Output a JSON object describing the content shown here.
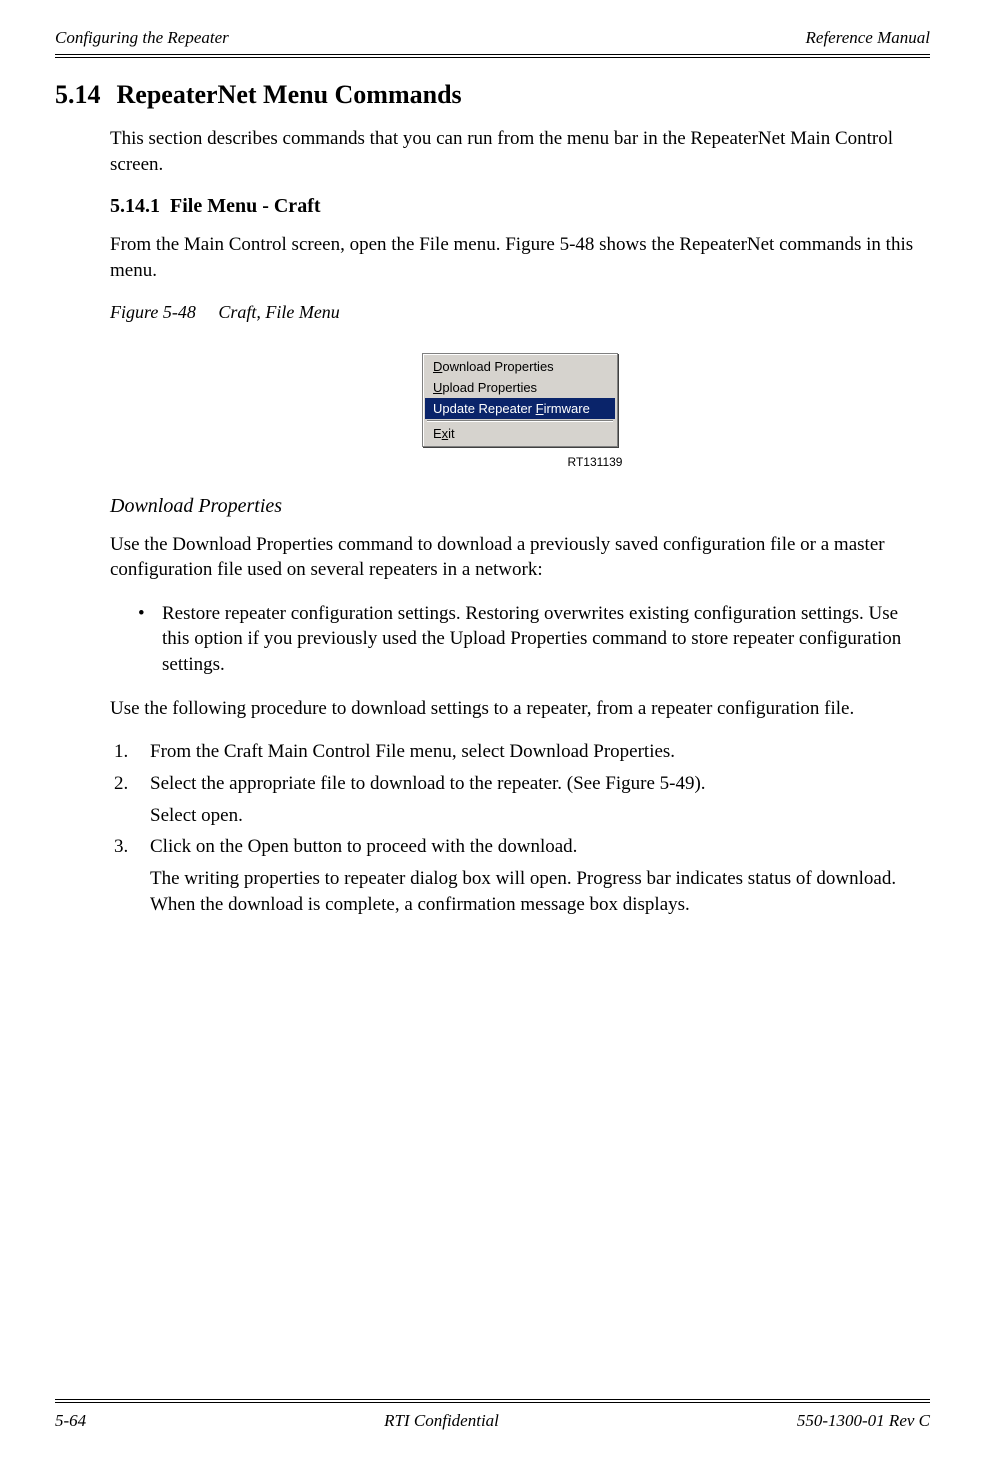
{
  "header": {
    "left": "Configuring the Repeater",
    "right": "Reference Manual"
  },
  "section": {
    "number": "5.14",
    "title": "RepeaterNet Menu Commands",
    "intro": "This section describes commands that you can run from the menu bar in the RepeaterNet Main Control screen."
  },
  "subsection": {
    "number": "5.14.1",
    "title": "File Menu - Craft",
    "intro": "From the Main Control screen, open the File menu. Figure 5-48 shows the RepeaterNet commands in this menu."
  },
  "figure": {
    "label": "Figure 5-48",
    "title": "Craft, File Menu",
    "ref": "RT131139",
    "menu": {
      "bg": "#d6d3ce",
      "sel_bg": "#0a246a",
      "sel_fg": "#ffffff",
      "items": [
        {
          "pre": "",
          "u": "D",
          "post": "ownload Properties",
          "selected": false
        },
        {
          "pre": "",
          "u": "U",
          "post": "pload Properties",
          "selected": false
        },
        {
          "pre": "Update Repeater ",
          "u": "F",
          "post": "irmware",
          "selected": true
        },
        {
          "sep": true
        },
        {
          "pre": "E",
          "u": "x",
          "post": "it",
          "selected": false
        }
      ]
    }
  },
  "download": {
    "heading": "Download Properties",
    "para1": "Use the Download Properties command to download a previously saved configuration file or a master configuration file used on several repeaters in a network:",
    "bullet": "Restore repeater configuration settings. Restoring overwrites existing configuration settings. Use this option if you previously used the Upload Properties command to store repeater configuration settings.",
    "para2": "Use the following procedure to download settings to a repeater, from a repeater configuration file.",
    "steps": {
      "s1": "From the Craft Main Control File menu, select Download Properties.",
      "s2": "Select the appropriate file to download to the repeater. (See Figure 5-49).",
      "s2b": "Select open.",
      "s3": "Click on the Open button to proceed with the download.",
      "s3b": "The writing properties to repeater dialog box will open. Progress bar indicates status of download. When the download is complete, a confirmation message box displays."
    }
  },
  "footer": {
    "left": "5-64",
    "center": "RTI Confidential",
    "right": "550-1300-01 Rev C"
  }
}
